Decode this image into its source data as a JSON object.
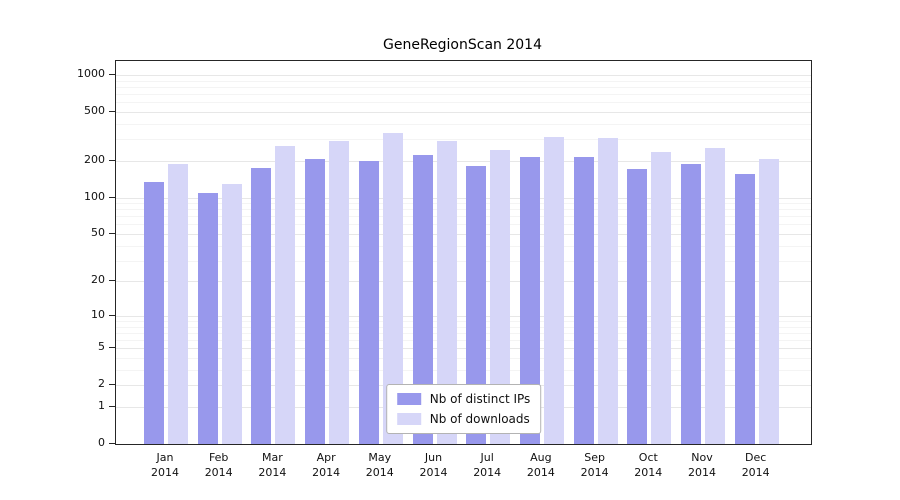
{
  "chart_data": {
    "type": "bar",
    "title": "GeneRegionScan 2014",
    "categories": [
      "Jan 2014",
      "Feb 2014",
      "Mar 2014",
      "Apr 2014",
      "May 2014",
      "Jun 2014",
      "Jul 2014",
      "Aug 2014",
      "Sep 2014",
      "Oct 2014",
      "Nov 2014",
      "Dec 2014"
    ],
    "x_tick_line1": [
      "Jan",
      "Feb",
      "Mar",
      "Apr",
      "May",
      "Jun",
      "Jul",
      "Aug",
      "Sep",
      "Oct",
      "Nov",
      "Dec"
    ],
    "x_tick_line2": "2014",
    "series": [
      {
        "name": "Nb of distinct IPs",
        "color": "#9898ec",
        "values": [
          135,
          110,
          175,
          205,
          200,
          225,
          180,
          215,
          215,
          170,
          190,
          155
        ]
      },
      {
        "name": "Nb of downloads",
        "color": "#d6d6f8",
        "values": [
          190,
          130,
          265,
          290,
          340,
          290,
          245,
          315,
          305,
          235,
          255,
          205
        ]
      }
    ],
    "xlabel": "",
    "ylabel": "",
    "y_ticks": [
      0,
      1,
      2,
      5,
      10,
      20,
      50,
      100,
      200,
      500,
      1000
    ],
    "y_scale": "log1p",
    "ylim": [
      0,
      1000
    ],
    "grid": true,
    "legend_position": "inside-bottom-center"
  }
}
